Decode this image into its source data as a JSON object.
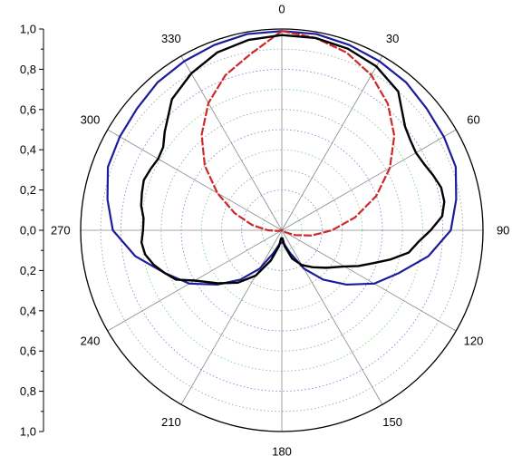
{
  "chart_data": {
    "type": "polar-line",
    "title": "",
    "angle_unit": "degrees",
    "angle_direction": "clockwise",
    "zero_at": "top",
    "angle_ticks": [
      0,
      30,
      60,
      90,
      120,
      150,
      180,
      210,
      240,
      270,
      300,
      330
    ],
    "angle_tick_labels": [
      "0",
      "30",
      "60",
      "90",
      "120",
      "150",
      "180",
      "210",
      "240",
      "270",
      "300",
      "330"
    ],
    "radial_range": [
      0,
      1.0
    ],
    "radial_axis_labels": [
      "1,0",
      "0,8",
      "0,6",
      "0,4",
      "0,2",
      "0,0",
      "0,2",
      "0,4",
      "0,6",
      "0,8",
      "1,0"
    ],
    "grid": {
      "radial_circles": true,
      "angular_spokes": true,
      "colors": [
        "#9a9a9a",
        "#6fcf6f",
        "#6f7fd0"
      ]
    },
    "series": [
      {
        "color": "#1c1c9a",
        "style": "solid",
        "angles": [
          0,
          10,
          20,
          30,
          40,
          50,
          60,
          70,
          80,
          90,
          100,
          110,
          120,
          130,
          140,
          150,
          160,
          170,
          180,
          190,
          200,
          210,
          220,
          230,
          240,
          250,
          260,
          270,
          280,
          290,
          300,
          310,
          320,
          330,
          340,
          350
        ],
        "r": [
          0.99,
          0.99,
          0.98,
          0.97,
          0.96,
          0.94,
          0.93,
          0.92,
          0.88,
          0.84,
          0.74,
          0.62,
          0.53,
          0.42,
          0.32,
          0.22,
          0.12,
          0.07,
          0.06,
          0.07,
          0.12,
          0.22,
          0.32,
          0.42,
          0.53,
          0.62,
          0.74,
          0.84,
          0.88,
          0.92,
          0.93,
          0.94,
          0.96,
          0.97,
          0.98,
          0.99
        ]
      },
      {
        "color": "#cc2a2a",
        "style": "dashed",
        "angles": [
          0,
          10,
          20,
          30,
          40,
          50,
          60,
          70,
          80,
          90,
          100,
          110,
          120,
          130,
          140,
          150,
          160,
          170,
          180,
          190,
          200,
          210,
          220,
          230,
          240,
          250,
          260,
          270,
          280,
          290,
          300,
          310,
          320,
          330,
          340,
          350
        ],
        "r": [
          0.99,
          0.97,
          0.94,
          0.89,
          0.82,
          0.73,
          0.62,
          0.5,
          0.37,
          0.25,
          0.15,
          0.07,
          0.02,
          0.0,
          0.0,
          0.0,
          0.0,
          0.0,
          0.0,
          0.0,
          0.0,
          0.0,
          0.0,
          0.0,
          0.0,
          0.0,
          0.02,
          0.07,
          0.15,
          0.25,
          0.37,
          0.5,
          0.62,
          0.73,
          0.82,
          0.89
        ]
      },
      {
        "color": "#000000",
        "style": "solid",
        "angles": [
          0,
          10,
          20,
          30,
          40,
          50,
          55,
          60,
          65,
          70,
          75,
          80,
          85,
          90,
          95,
          100,
          105,
          110,
          115,
          120,
          130,
          140,
          150,
          160,
          170,
          175,
          180,
          185,
          190,
          200,
          210,
          220,
          230,
          240,
          245,
          250,
          255,
          260,
          265,
          270,
          275,
          280,
          285,
          290,
          295,
          300,
          305,
          310,
          320,
          330,
          340,
          350
        ],
        "r": [
          0.97,
          0.97,
          0.96,
          0.94,
          0.9,
          0.8,
          0.78,
          0.77,
          0.78,
          0.8,
          0.82,
          0.82,
          0.8,
          0.74,
          0.68,
          0.64,
          0.56,
          0.48,
          0.42,
          0.36,
          0.29,
          0.24,
          0.2,
          0.15,
          0.08,
          0.04,
          0.04,
          0.04,
          0.08,
          0.16,
          0.26,
          0.34,
          0.41,
          0.5,
          0.58,
          0.62,
          0.66,
          0.69,
          0.7,
          0.69,
          0.69,
          0.71,
          0.72,
          0.73,
          0.72,
          0.71,
          0.72,
          0.76,
          0.85,
          0.9,
          0.94,
          0.96
        ]
      }
    ]
  }
}
